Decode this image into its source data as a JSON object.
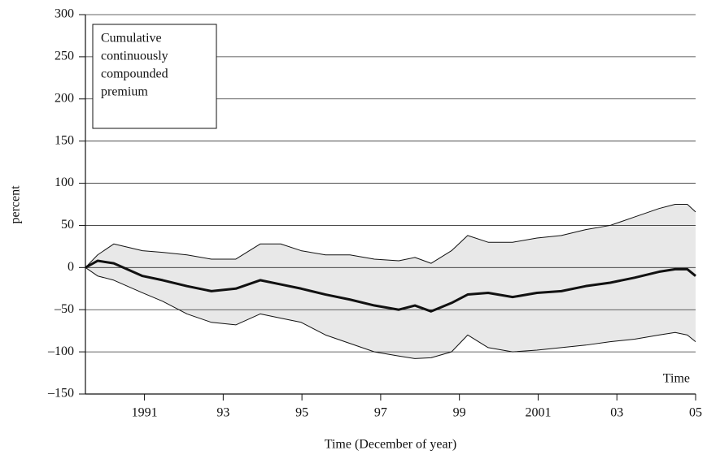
{
  "chart_data": {
    "type": "band-line",
    "y_label": "percent",
    "x_label": "Time (December of year)",
    "annotation_lines": [
      "Cumulative",
      "continuously",
      "compounded",
      "premium"
    ],
    "corner_label": "Time",
    "x": [
      1989.5,
      1989.81,
      1990.22,
      1990.95,
      1991.46,
      1992.08,
      1992.7,
      1993.32,
      1993.94,
      1994.46,
      1994.98,
      1995.6,
      1996.22,
      1996.84,
      1997.46,
      1997.87,
      1998.28,
      1998.8,
      1999.21,
      1999.73,
      2000.35,
      2000.97,
      2001.59,
      2002.21,
      2002.83,
      2003.45,
      2004.07,
      2004.48,
      2004.79,
      2005
    ],
    "series": [
      {
        "color": "#111111",
        "width": 1,
        "values": [
          0,
          15,
          28,
          20,
          18,
          15,
          10,
          10,
          28,
          28,
          20,
          15,
          15,
          10,
          8,
          12,
          5,
          20,
          38,
          30,
          30,
          35,
          38,
          45,
          50,
          60,
          70,
          75,
          75,
          66
        ]
      },
      {
        "color": "#111111",
        "width": 3,
        "values": [
          0,
          8,
          5,
          -10,
          -15,
          -22,
          -28,
          -25,
          -15,
          -20,
          -25,
          -32,
          -38,
          -45,
          -50,
          -45,
          -52,
          -42,
          -32,
          -30,
          -35,
          -30,
          -28,
          -22,
          -18,
          -12,
          -5,
          -2,
          -2,
          -10
        ]
      },
      {
        "color": "#111111",
        "width": 1,
        "values": [
          0,
          -10,
          -15,
          -30,
          -40,
          -55,
          -65,
          -68,
          -55,
          -60,
          -65,
          -80,
          -90,
          -100,
          -105,
          -108,
          -107,
          -100,
          -80,
          -95,
          -100,
          -98,
          -95,
          -92,
          -88,
          -85,
          -80,
          -77,
          -80,
          -88
        ]
      }
    ],
    "band_fill": "#e8e8e8",
    "xlim": [
      1989.5,
      2005
    ],
    "xticks": [
      1991,
      {
        "value": 1993,
        "label": "93"
      },
      {
        "value": 1995,
        "label": "95"
      },
      {
        "value": 1997,
        "label": "97"
      },
      {
        "value": 1999,
        "label": "99"
      },
      2001,
      {
        "value": 2003,
        "label": "03"
      },
      {
        "value": 2005,
        "label": "05"
      }
    ],
    "ylim": [
      -150,
      300
    ],
    "yticks": [
      {
        "value": -150,
        "label": "–150"
      },
      {
        "value": -100,
        "label": "–100"
      },
      {
        "value": -50,
        "label": "–50"
      },
      0,
      50,
      100,
      150,
      200,
      250,
      300
    ],
    "grid": true
  }
}
